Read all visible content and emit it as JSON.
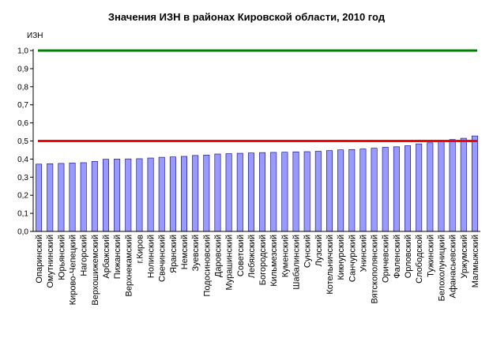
{
  "chart_data": {
    "type": "bar",
    "title": "Значения ИЗН в районах Кировской области, 2010 год",
    "ylabel": "ИЗН",
    "xlabel": "",
    "ylim": [
      0,
      1.0
    ],
    "yticks": [
      "0,0",
      "0,1",
      "0,2",
      "0,3",
      "0,4",
      "0,5",
      "0,6",
      "0,7",
      "0,8",
      "0,9",
      "1,0"
    ],
    "grid": false,
    "legend": "none",
    "categories": [
      "Опаринский",
      "Омутнинский",
      "Юрьянский",
      "Кирово-Чепецкий",
      "Нагорский",
      "Верхошижемский",
      "Арбажский",
      "Пижанский",
      "Верхнекамский",
      "г.Киров",
      "Нолинский",
      "Свечинский",
      "Яранский",
      "Немский",
      "Зуевский",
      "Подосиновский",
      "Даровский",
      "Мурашинский",
      "Советский",
      "Лебяжский",
      "Богородский",
      "Кильмезский",
      "Куменский",
      "Шабалинский",
      "Сунский",
      "Лузский",
      "Котельничский",
      "Кикнурский",
      "Санчурский",
      "Унинский",
      "Вятскополянский",
      "Оричевский",
      "Фаленский",
      "Орловский",
      "Слободской",
      "Тужинский",
      "Белохолуницкий",
      "Афанасьевский",
      "Уржумский",
      "Малмыжский"
    ],
    "values": [
      0.372,
      0.374,
      0.376,
      0.378,
      0.38,
      0.387,
      0.399,
      0.4,
      0.401,
      0.402,
      0.406,
      0.41,
      0.412,
      0.415,
      0.42,
      0.422,
      0.428,
      0.43,
      0.432,
      0.434,
      0.436,
      0.437,
      0.438,
      0.44,
      0.441,
      0.443,
      0.447,
      0.451,
      0.453,
      0.456,
      0.46,
      0.465,
      0.468,
      0.474,
      0.484,
      0.49,
      0.495,
      0.508,
      0.515,
      0.528
    ],
    "reference_lines": [
      {
        "value": 1.0,
        "color": "#008000"
      },
      {
        "value": 0.5,
        "color": "#ff0000"
      }
    ],
    "colors": {
      "bar_fill": "#9999ff",
      "bar_stroke": "#000080",
      "axis": "#000000"
    }
  }
}
